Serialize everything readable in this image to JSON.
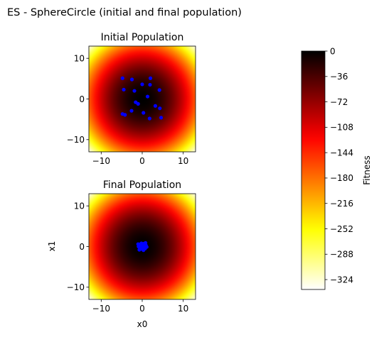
{
  "figure": {
    "title": "ES - SphereCircle (initial and final population)"
  },
  "chart_data": [
    {
      "type": "scatter",
      "title": "Initial Population",
      "xlabel": "",
      "ylabel": "",
      "xlim": [
        -13,
        13
      ],
      "ylim": [
        -13,
        13
      ],
      "xticks": [
        -10,
        0,
        10
      ],
      "yticks": [
        -10,
        0,
        10
      ],
      "background": "heatmap of fitness = -(x0^2 + x1^2)",
      "marker_color": "#0000ff",
      "points": [
        [
          -4.8,
          5.1
        ],
        [
          -2.5,
          4.8
        ],
        [
          0.0,
          3.6
        ],
        [
          1.9,
          3.5
        ],
        [
          2.0,
          5.1
        ],
        [
          -4.5,
          2.3
        ],
        [
          -1.9,
          2.0
        ],
        [
          4.2,
          2.2
        ],
        [
          1.3,
          0.6
        ],
        [
          -1.6,
          -0.8
        ],
        [
          -1.0,
          -1.2
        ],
        [
          3.2,
          -1.7
        ],
        [
          4.3,
          -2.3
        ],
        [
          -2.6,
          -2.9
        ],
        [
          0.3,
          -3.4
        ],
        [
          -4.8,
          -3.7
        ],
        [
          -4.2,
          -3.9
        ],
        [
          1.8,
          -4.8
        ],
        [
          4.6,
          -4.6
        ]
      ]
    },
    {
      "type": "scatter",
      "title": "Final Population",
      "xlabel": "x0",
      "ylabel": "x1",
      "xlim": [
        -13,
        13
      ],
      "ylim": [
        -13,
        13
      ],
      "xticks": [
        -10,
        0,
        10
      ],
      "yticks": [
        -10,
        0,
        10
      ],
      "background": "heatmap of fitness = -(x0^2 + x1^2)",
      "marker_color": "#0000ff",
      "points": [
        [
          -0.6,
          0.5
        ],
        [
          -0.2,
          0.8
        ],
        [
          0.4,
          0.7
        ],
        [
          0.9,
          0.3
        ],
        [
          -0.9,
          0.0
        ],
        [
          -0.5,
          -0.4
        ],
        [
          0.1,
          -0.7
        ],
        [
          0.7,
          -0.5
        ],
        [
          1.1,
          -0.1
        ],
        [
          0.2,
          0.2
        ],
        [
          -0.3,
          0.1
        ],
        [
          0.5,
          0.1
        ],
        [
          -0.7,
          -0.8
        ],
        [
          0.8,
          0.9
        ],
        [
          -1.0,
          0.6
        ],
        [
          0.3,
          -0.9
        ],
        [
          -0.1,
          -0.3
        ],
        [
          0.6,
          -0.2
        ]
      ]
    },
    {
      "type": "colorbar",
      "label": "Fitness",
      "colormap": "hot",
      "range": [
        -338,
        0
      ],
      "ticks": [
        0,
        -36,
        -72,
        -108,
        -144,
        -180,
        -216,
        -252,
        -288,
        -324
      ],
      "tick_labels": [
        "0",
        "−36",
        "−72",
        "−108",
        "−144",
        "−180",
        "−216",
        "−252",
        "−288",
        "−324"
      ]
    }
  ]
}
